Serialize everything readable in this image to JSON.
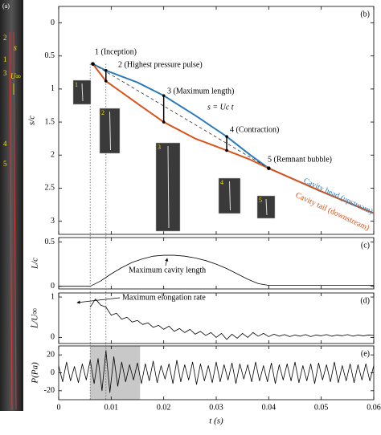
{
  "chart_data": [
    {
      "type": "line",
      "label": "(b)",
      "ylabel": "s/c",
      "y_reversed": true,
      "xlim": [
        0,
        0.06
      ],
      "xticks": [
        0,
        0.01,
        0.02,
        0.03,
        0.04,
        0.05,
        0.06
      ],
      "ylim": [
        -0.25,
        3.2
      ],
      "yticks": [
        0,
        0.5,
        1,
        1.5,
        2,
        2.5,
        3
      ],
      "vlines": [
        0.006,
        0.009
      ],
      "x": [
        0.0065,
        0.009,
        0.015,
        0.02,
        0.026,
        0.032,
        0.0365,
        0.04,
        0.05,
        0.06
      ],
      "series": [
        {
          "name": "Cavity head (upstream)",
          "color": "#2b7bba",
          "values": [
            0.62,
            0.72,
            0.9,
            1.1,
            1.4,
            1.72,
            2.0,
            2.2,
            2.55,
            2.88
          ]
        },
        {
          "name": "Cavity tail (downstream)",
          "color": "#d9541a",
          "values": [
            0.62,
            0.88,
            1.22,
            1.5,
            1.75,
            1.93,
            2.07,
            2.2,
            2.55,
            2.88
          ]
        }
      ],
      "annotations": [
        "1 (Inception)",
        "2 (Highest pressure pulse)",
        "3 (Maximum length)",
        "s = Uc t",
        "4 (Contraction)",
        "5 (Remnant bubble)"
      ],
      "insets": [
        "1",
        "2",
        "3",
        "4",
        "5"
      ],
      "strip": {
        "label": "(a)",
        "s": "s",
        "flow": "U∞",
        "markers": [
          "1",
          "2",
          "3",
          "4",
          "5"
        ]
      }
    },
    {
      "type": "line",
      "label": "(c)",
      "ylabel": "L/c",
      "xlim": [
        0,
        0.06
      ],
      "xticks": [
        0,
        0.01,
        0.02,
        0.03,
        0.04,
        0.05,
        0.06
      ],
      "ylim": [
        -0.03,
        0.55
      ],
      "yticks": [
        0,
        0.5
      ],
      "x": [
        0,
        0.006,
        0.008,
        0.01,
        0.012,
        0.014,
        0.016,
        0.018,
        0.02,
        0.022,
        0.024,
        0.026,
        0.028,
        0.03,
        0.032,
        0.034,
        0.036,
        0.038,
        0.04,
        0.05,
        0.06
      ],
      "series": [
        {
          "color": "#000000",
          "values": [
            0,
            0,
            0.06,
            0.14,
            0.21,
            0.27,
            0.31,
            0.34,
            0.35,
            0.35,
            0.34,
            0.32,
            0.29,
            0.25,
            0.2,
            0.14,
            0.08,
            0.03,
            0.01,
            0.01,
            0.01
          ]
        }
      ],
      "annotations": [
        "Maximum cavity length"
      ]
    },
    {
      "type": "line",
      "label": "(d)",
      "ylabel": "L̇/U∞",
      "xlim": [
        0,
        0.06
      ],
      "xticks": [
        0,
        0.01,
        0.02,
        0.03,
        0.04,
        0.05,
        0.06
      ],
      "ylim": [
        -0.15,
        1.1
      ],
      "yticks": [
        0,
        1
      ],
      "x": [
        0.006,
        0.007,
        0.008,
        0.009,
        0.01,
        0.011,
        0.012,
        0.013,
        0.014,
        0.015,
        0.016,
        0.017,
        0.018,
        0.019,
        0.02,
        0.021,
        0.022,
        0.023,
        0.024,
        0.025,
        0.026,
        0.027,
        0.028,
        0.029,
        0.03,
        0.031,
        0.032,
        0.033,
        0.034,
        0.035,
        0.036,
        0.037,
        0.038,
        0.039,
        0.04,
        0.041,
        0.042,
        0.043,
        0.044,
        0.045,
        0.046,
        0.047,
        0.048,
        0.049,
        0.05,
        0.051,
        0.052,
        0.053,
        0.054,
        0.055,
        0.056,
        0.057,
        0.058,
        0.059,
        0.06
      ],
      "series": [
        {
          "color": "#000000",
          "values": [
            0.75,
            0.95,
            0.8,
            0.75,
            0.55,
            0.6,
            0.45,
            0.5,
            0.38,
            0.42,
            0.32,
            0.36,
            0.25,
            0.3,
            0.2,
            0.28,
            0.15,
            0.22,
            0.12,
            0.2,
            0.08,
            0.15,
            0.05,
            0.12,
            0.0,
            0.1,
            -0.05,
            0.08,
            -0.02,
            0.1,
            0.0,
            0.12,
            0.03,
            0.1,
            0.02,
            0.08,
            0.03,
            0.07,
            0.02,
            0.06,
            0.03,
            0.07,
            0.02,
            0.06,
            0.04,
            0.07,
            0.03,
            0.06,
            0.04,
            0.07,
            0.03,
            0.06,
            0.04,
            0.06,
            0.05
          ]
        }
      ],
      "annotations": [
        "Maximum elongation rate"
      ]
    },
    {
      "type": "line",
      "label": "(e)",
      "ylabel": "P(Pa)",
      "xlabel": "t (s)",
      "xlim": [
        0,
        0.06
      ],
      "xticks": [
        0,
        0.01,
        0.02,
        0.03,
        0.04,
        0.05,
        0.06
      ],
      "ylim": [
        -30,
        30
      ],
      "yticks": [
        -20,
        0,
        20
      ],
      "shade": [
        0.006,
        0.0155
      ],
      "x": [
        0,
        0.00075,
        0.0015,
        0.00225,
        0.003,
        0.00375,
        0.0045,
        0.00525,
        0.006,
        0.00675,
        0.0075,
        0.00825,
        0.009,
        0.00975,
        0.0105,
        0.01125,
        0.012,
        0.01275,
        0.0135,
        0.01425,
        0.015,
        0.01575,
        0.0165,
        0.01725,
        0.018,
        0.01875,
        0.0195,
        0.02025,
        0.021,
        0.02175,
        0.0225,
        0.02325,
        0.024,
        0.02475,
        0.0255,
        0.02625,
        0.027,
        0.02775,
        0.0285,
        0.02925,
        0.03,
        0.03075,
        0.0315,
        0.03225,
        0.033,
        0.03375,
        0.0345,
        0.03525,
        0.036,
        0.03675,
        0.0375,
        0.03825,
        0.039,
        0.03975,
        0.0405,
        0.04125,
        0.042,
        0.04275,
        0.0435,
        0.04425,
        0.045,
        0.04575,
        0.0465,
        0.04725,
        0.048,
        0.04875,
        0.0495,
        0.05025,
        0.051,
        0.05175,
        0.0525,
        0.05325,
        0.054,
        0.05475,
        0.0555,
        0.05625,
        0.057,
        0.05775,
        0.0585,
        0.05925,
        0.06
      ],
      "series": [
        {
          "color": "#000000",
          "values": [
            8,
            -10,
            12,
            -9,
            7,
            -11,
            10,
            -8,
            14,
            -12,
            16,
            -20,
            25,
            -22,
            18,
            -15,
            12,
            -10,
            9,
            -8,
            11,
            -12,
            10,
            -9,
            13,
            -11,
            8,
            -7,
            10,
            -12,
            14,
            -10,
            9,
            -8,
            12,
            -13,
            10,
            -9,
            8,
            -11,
            12,
            -10,
            9,
            -8,
            11,
            -12,
            10,
            -7,
            9,
            -10,
            12,
            -9,
            8,
            -10,
            11,
            -12,
            9,
            -8,
            10,
            -9,
            12,
            -11,
            8,
            -9,
            10,
            -12,
            11,
            -8,
            9,
            -10,
            12,
            -11,
            8,
            -9,
            10,
            -11,
            9,
            -8,
            10,
            -9,
            8
          ]
        }
      ]
    }
  ]
}
